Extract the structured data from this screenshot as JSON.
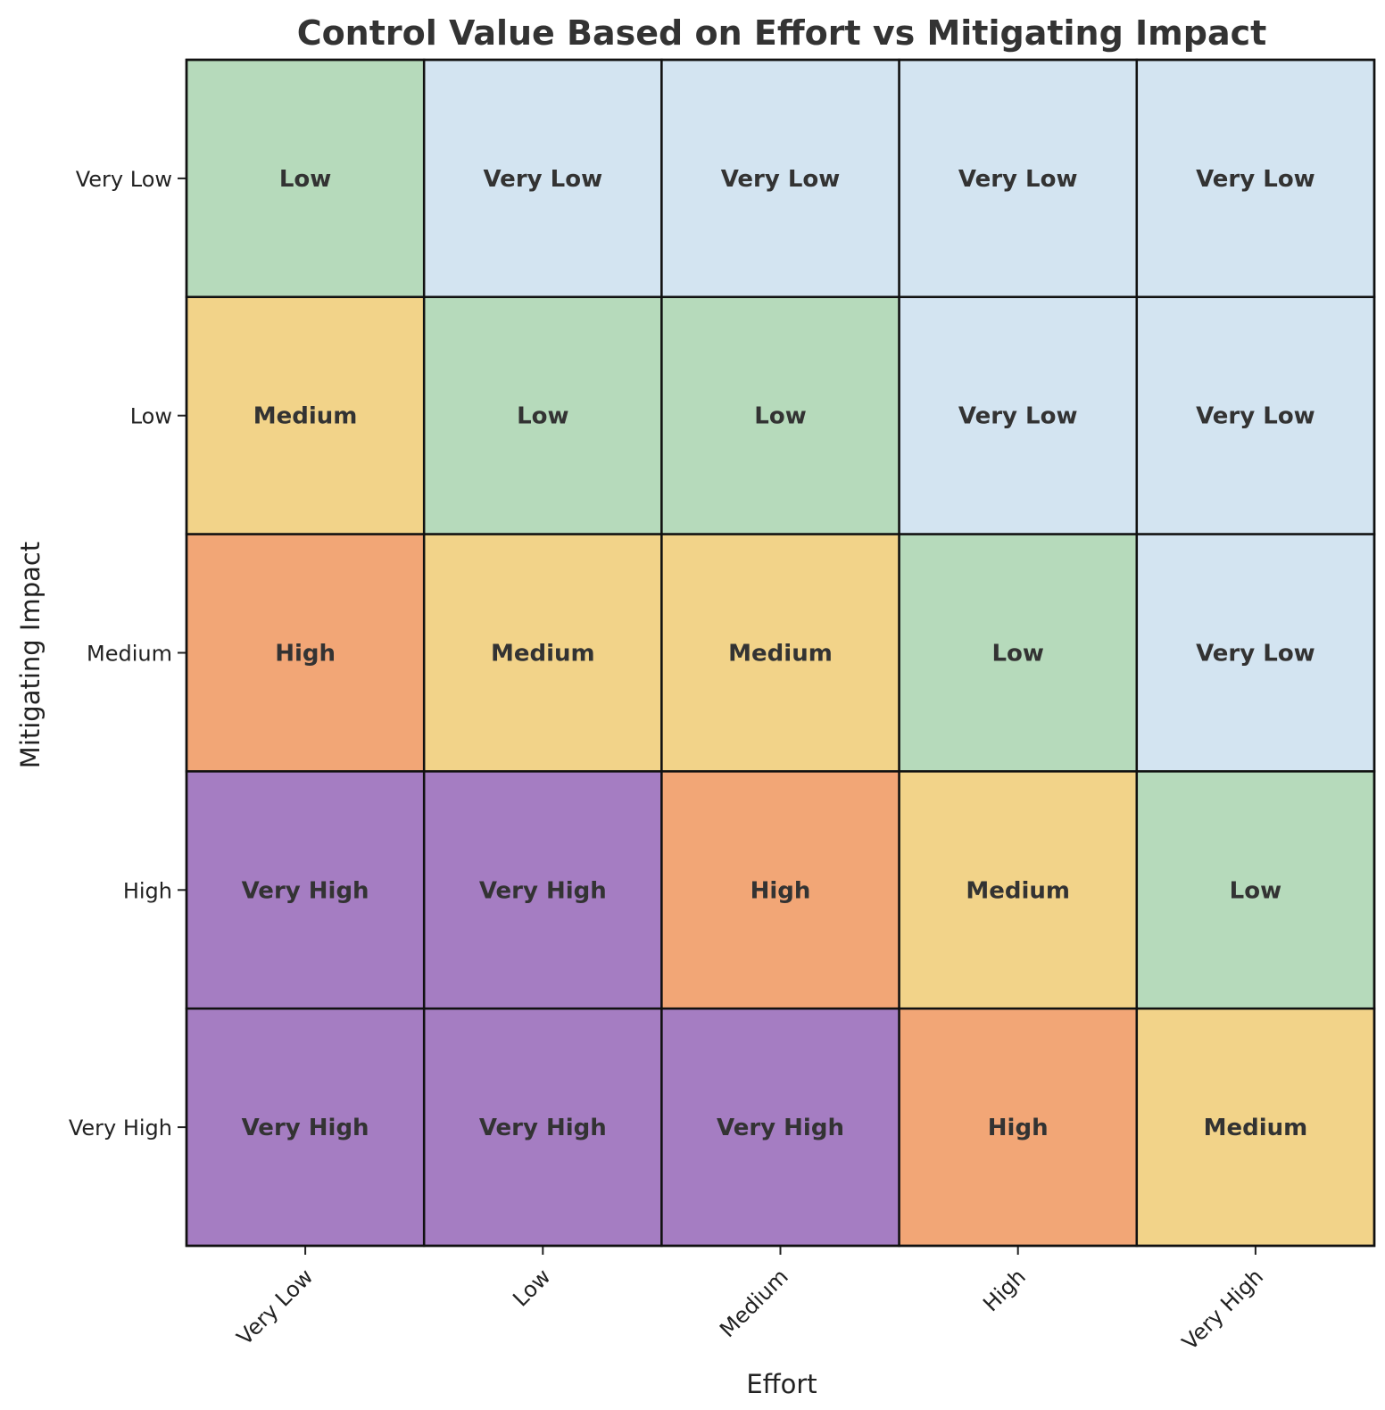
{
  "colors": {
    "Very Low": "#d3e4f1",
    "Low": "#b6dabb",
    "Medium": "#f2d389",
    "High": "#f2a676",
    "Very High": "#a57dc2"
  },
  "chart_data": {
    "type": "heatmap",
    "title": "Control Value Based on Effort vs Mitigating Impact",
    "xlabel": "Effort",
    "ylabel": "Mitigating Impact",
    "x_categories": [
      "Very Low",
      "Low",
      "Medium",
      "High",
      "Very High"
    ],
    "y_categories": [
      "Very Low",
      "Low",
      "Medium",
      "High",
      "Very High"
    ],
    "values": [
      [
        "Low",
        "Very Low",
        "Very Low",
        "Very Low",
        "Very Low"
      ],
      [
        "Medium",
        "Low",
        "Low",
        "Very Low",
        "Very Low"
      ],
      [
        "High",
        "Medium",
        "Medium",
        "Low",
        "Very Low"
      ],
      [
        "Very High",
        "Very High",
        "High",
        "Medium",
        "Low"
      ],
      [
        "Very High",
        "Very High",
        "Very High",
        "High",
        "Medium"
      ]
    ],
    "grid": false,
    "legend": "none"
  }
}
